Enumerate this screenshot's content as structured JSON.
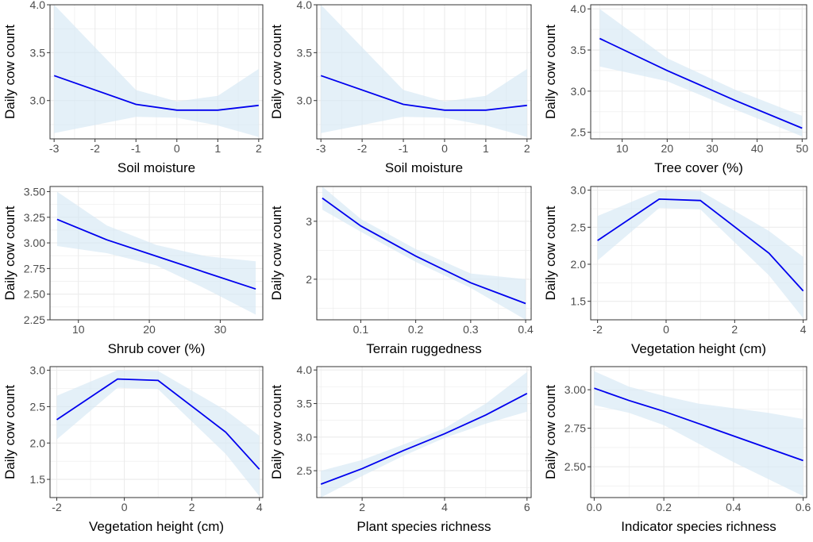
{
  "colors": {
    "line": "#0000ee",
    "ribbon": "#d6e8f5",
    "grid": "#ebebeb",
    "frame": "#333333"
  },
  "chart_data": [
    {
      "type": "line",
      "xlabel": "Soil moisture",
      "ylabel": "Daily cow count",
      "xlim": [
        -3.1,
        2.1
      ],
      "ylim": [
        2.6,
        4.0
      ],
      "xticks": [
        -3,
        -2,
        -1,
        0,
        1,
        2
      ],
      "yticks": [
        3.0,
        3.5,
        4.0
      ],
      "x": [
        -3,
        -1,
        0,
        1,
        2
      ],
      "y": [
        3.26,
        2.96,
        2.9,
        2.9,
        2.95
      ],
      "lower": [
        2.66,
        2.83,
        2.82,
        2.74,
        2.62
      ],
      "upper": [
        4.0,
        3.11,
        2.99,
        3.05,
        3.33
      ]
    },
    {
      "type": "line",
      "xlabel": "Soil moisture",
      "ylabel": "Daily cow count",
      "xlim": [
        -3.1,
        2.1
      ],
      "ylim": [
        2.6,
        4.0
      ],
      "xticks": [
        -3,
        -2,
        -1,
        0,
        1,
        2
      ],
      "yticks": [
        3.0,
        3.5,
        4.0
      ],
      "x": [
        -3,
        -1,
        0,
        1,
        2
      ],
      "y": [
        3.26,
        2.96,
        2.9,
        2.9,
        2.95
      ],
      "lower": [
        2.66,
        2.83,
        2.82,
        2.74,
        2.62
      ],
      "upper": [
        4.0,
        3.11,
        2.99,
        3.05,
        3.33
      ]
    },
    {
      "type": "line",
      "xlabel": "Tree cover (%)",
      "ylabel": "Daily cow count",
      "xlim": [
        3,
        51
      ],
      "ylim": [
        2.42,
        4.05
      ],
      "xticks": [
        10,
        20,
        30,
        40,
        50
      ],
      "yticks": [
        2.5,
        3.0,
        3.5,
        4.0
      ],
      "x": [
        5,
        20,
        35,
        50
      ],
      "y": [
        3.64,
        3.25,
        2.89,
        2.55
      ],
      "lower": [
        3.3,
        3.12,
        2.78,
        2.45
      ],
      "upper": [
        4.0,
        3.4,
        3.02,
        2.7
      ]
    },
    {
      "type": "line",
      "xlabel": "Shrub cover (%)",
      "ylabel": "Daily cow count",
      "xlim": [
        6,
        36
      ],
      "ylim": [
        2.25,
        3.55
      ],
      "xticks": [
        10,
        20,
        30
      ],
      "yticks": [
        2.25,
        2.5,
        2.75,
        3.0,
        3.25,
        3.5
      ],
      "x": [
        7,
        14,
        21,
        28,
        35
      ],
      "y": [
        3.23,
        3.03,
        2.87,
        2.71,
        2.55
      ],
      "lower": [
        2.97,
        2.9,
        2.78,
        2.55,
        2.3
      ],
      "upper": [
        3.5,
        3.17,
        2.98,
        2.87,
        2.82
      ]
    },
    {
      "type": "line",
      "xlabel": "Terrain ruggedness",
      "ylabel": "Daily cow count",
      "xlim": [
        0.02,
        0.41
      ],
      "ylim": [
        1.3,
        3.6
      ],
      "xticks": [
        0.1,
        0.2,
        0.3,
        0.4
      ],
      "yticks": [
        2,
        3
      ],
      "x": [
        0.03,
        0.1,
        0.2,
        0.3,
        0.4
      ],
      "y": [
        3.4,
        2.92,
        2.4,
        1.94,
        1.58
      ],
      "lower": [
        3.2,
        2.82,
        2.3,
        1.85,
        1.3
      ],
      "upper": [
        3.6,
        3.04,
        2.52,
        2.1,
        2.0
      ]
    },
    {
      "type": "line",
      "xlabel": "Vegetation height (cm)",
      "ylabel": "Daily cow count",
      "xlim": [
        -2.2,
        4.1
      ],
      "ylim": [
        1.25,
        3.05
      ],
      "xticks": [
        -2,
        0,
        2,
        4
      ],
      "yticks": [
        1.5,
        2.0,
        2.5,
        3.0
      ],
      "x": [
        -2,
        -0.2,
        1,
        3,
        4
      ],
      "y": [
        2.32,
        2.88,
        2.86,
        2.15,
        1.64
      ],
      "lower": [
        2.05,
        2.76,
        2.74,
        1.85,
        1.27
      ],
      "upper": [
        2.65,
        3.0,
        2.99,
        2.45,
        2.1
      ]
    },
    {
      "type": "line",
      "xlabel": "Vegetation height (cm)",
      "ylabel": "Daily cow count",
      "xlim": [
        -2.2,
        4.1
      ],
      "ylim": [
        1.25,
        3.05
      ],
      "xticks": [
        -2,
        0,
        2,
        4
      ],
      "yticks": [
        1.5,
        2.0,
        2.5,
        3.0
      ],
      "x": [
        -2,
        -0.2,
        1,
        3,
        4
      ],
      "y": [
        2.32,
        2.88,
        2.86,
        2.15,
        1.64
      ],
      "lower": [
        2.05,
        2.76,
        2.74,
        1.85,
        1.27
      ],
      "upper": [
        2.65,
        3.0,
        2.99,
        2.45,
        2.1
      ]
    },
    {
      "type": "line",
      "xlabel": "Plant species richness",
      "ylabel": "Daily cow count",
      "xlim": [
        0.9,
        6.1
      ],
      "ylim": [
        2.1,
        4.05
      ],
      "xticks": [
        2,
        4,
        6
      ],
      "yticks": [
        2.5,
        3.0,
        3.5,
        4.0
      ],
      "x": [
        1,
        2,
        3,
        4,
        5,
        6
      ],
      "y": [
        2.3,
        2.53,
        2.8,
        3.05,
        3.33,
        3.65
      ],
      "lower": [
        2.1,
        2.42,
        2.72,
        2.99,
        3.2,
        3.38
      ],
      "upper": [
        2.5,
        2.66,
        2.89,
        3.13,
        3.5,
        3.97
      ]
    },
    {
      "type": "line",
      "xlabel": "Indicator species richness",
      "ylabel": "Daily cow count",
      "xlim": [
        -0.01,
        0.61
      ],
      "ylim": [
        2.3,
        3.15
      ],
      "xticks": [
        0.0,
        0.2,
        0.4,
        0.6
      ],
      "yticks": [
        2.5,
        2.75,
        3.0
      ],
      "x": [
        0.0,
        0.1,
        0.2,
        0.3,
        0.4,
        0.5,
        0.6
      ],
      "y": [
        3.01,
        2.93,
        2.86,
        2.78,
        2.7,
        2.62,
        2.54
      ],
      "lower": [
        2.9,
        2.85,
        2.77,
        2.65,
        2.53,
        2.42,
        2.31
      ],
      "upper": [
        3.12,
        3.02,
        2.96,
        2.91,
        2.88,
        2.85,
        2.81
      ]
    }
  ]
}
